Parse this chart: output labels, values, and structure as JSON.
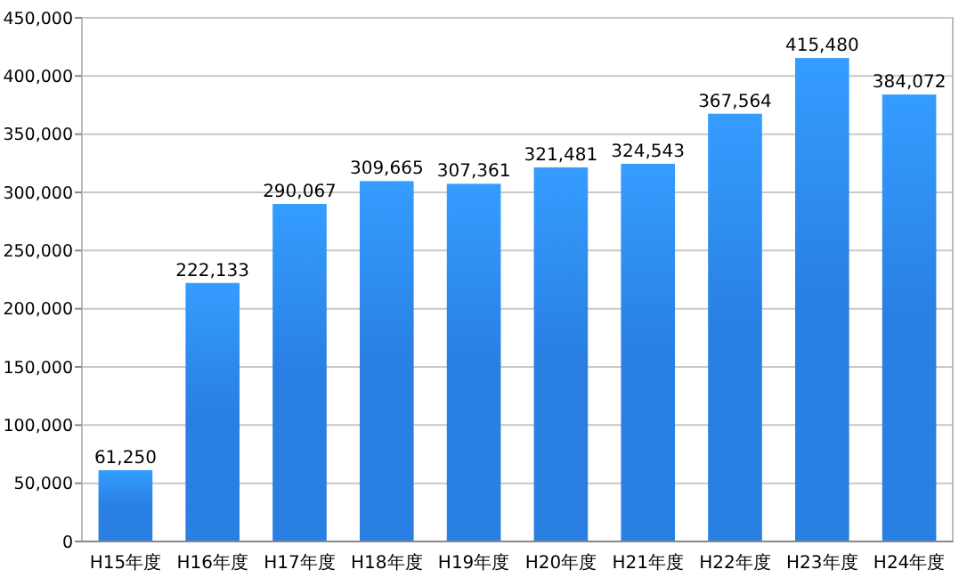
{
  "chart_data": {
    "type": "bar",
    "categories": [
      "H15年度",
      "H16年度",
      "H17年度",
      "H18年度",
      "H19年度",
      "H20年度",
      "H21年度",
      "H22年度",
      "H23年度",
      "H24年度"
    ],
    "values": [
      61250,
      222133,
      290067,
      309665,
      307361,
      321481,
      324543,
      367564,
      415480,
      384072
    ],
    "value_labels": [
      "61,250",
      "222,133",
      "290,067",
      "309,665",
      "307,361",
      "321,481",
      "324,543",
      "367,564",
      "415,480",
      "384,072"
    ],
    "color": "#2a7fe3",
    "ylim": [
      0,
      450000
    ],
    "yticks": [
      0,
      {
        "value": 50000,
        "label": "50,000"
      },
      {
        "value": 100000,
        "label": "100,000"
      },
      {
        "value": 150000,
        "label": "150,000"
      },
      {
        "value": 200000,
        "label": "200,000"
      },
      {
        "value": 250000,
        "label": "250,000"
      },
      {
        "value": 300000,
        "label": "300,000"
      },
      {
        "value": 350000,
        "label": "350,000"
      },
      {
        "value": 400000,
        "label": "400,000"
      },
      {
        "value": 450000,
        "label": "450,000"
      }
    ],
    "grid": "y"
  }
}
